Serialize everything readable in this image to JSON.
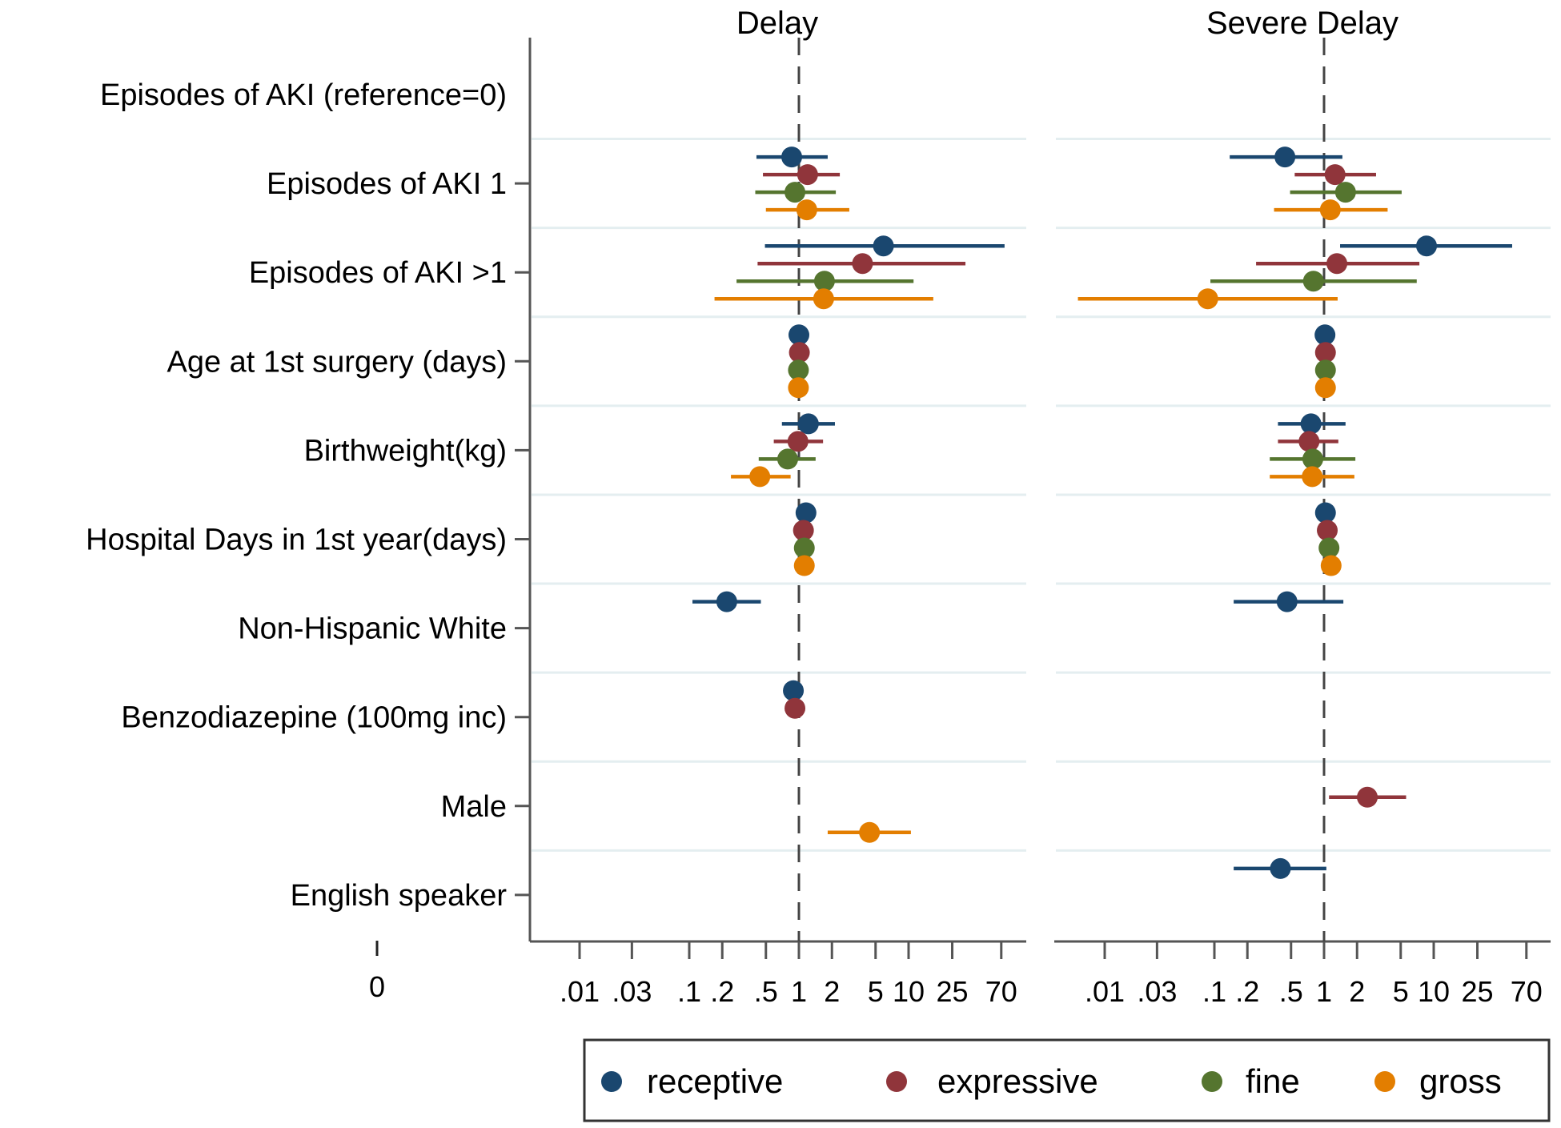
{
  "chart_data": {
    "type": "scatter",
    "subtype": "forest-plot",
    "x_scale": "log",
    "reference_value": 1,
    "x_ticks": [
      0.01,
      0.03,
      0.1,
      0.2,
      0.5,
      1,
      2,
      5,
      10,
      25,
      70
    ],
    "x_tick_labels": [
      ".01",
      ".03",
      ".1",
      ".2",
      ".5",
      "1",
      "2",
      "5",
      "10",
      "25",
      "70"
    ],
    "xlim": [
      0.0045,
      95
    ],
    "extra_axis": {
      "tick_label": "0"
    },
    "grid": "horizontal separators between rows",
    "legend_position": "bottom-right",
    "categories": [
      "Episodes of AKI (reference=0)",
      "Episodes of AKI 1",
      "Episodes of AKI >1",
      "Age at 1st surgery (days)",
      "Birthweight(kg)",
      "Hospital Days in 1st year(days)",
      "Non-Hispanic White",
      "Benzodiazepine (100mg inc)",
      "Male",
      "English speaker"
    ],
    "series": [
      {
        "name": "receptive",
        "color": "#1a476f"
      },
      {
        "name": "expressive",
        "color": "#90353b"
      },
      {
        "name": "fine",
        "color": "#55752f"
      },
      {
        "name": "gross",
        "color": "#e37e00"
      }
    ],
    "panels": [
      {
        "title": "Delay",
        "points": [
          {
            "category": 1,
            "series": "receptive",
            "est": 0.86,
            "lo": 0.41,
            "hi": 1.83
          },
          {
            "category": 1,
            "series": "expressive",
            "est": 1.2,
            "lo": 0.47,
            "hi": 2.36
          },
          {
            "category": 1,
            "series": "fine",
            "est": 0.92,
            "lo": 0.4,
            "hi": 2.17
          },
          {
            "category": 1,
            "series": "gross",
            "est": 1.18,
            "lo": 0.5,
            "hi": 2.88
          },
          {
            "category": 2,
            "series": "receptive",
            "est": 5.9,
            "lo": 0.49,
            "hi": 75
          },
          {
            "category": 2,
            "series": "expressive",
            "est": 3.8,
            "lo": 0.42,
            "hi": 33
          },
          {
            "category": 2,
            "series": "fine",
            "est": 1.71,
            "lo": 0.27,
            "hi": 11.1
          },
          {
            "category": 2,
            "series": "gross",
            "est": 1.68,
            "lo": 0.17,
            "hi": 16.8
          },
          {
            "category": 3,
            "series": "receptive",
            "est": 1.0,
            "lo": null,
            "hi": null
          },
          {
            "category": 3,
            "series": "expressive",
            "est": 1.01,
            "lo": null,
            "hi": null
          },
          {
            "category": 3,
            "series": "fine",
            "est": 0.99,
            "lo": null,
            "hi": null
          },
          {
            "category": 3,
            "series": "gross",
            "est": 0.99,
            "lo": null,
            "hi": null
          },
          {
            "category": 4,
            "series": "receptive",
            "est": 1.22,
            "lo": 0.7,
            "hi": 2.13
          },
          {
            "category": 4,
            "series": "expressive",
            "est": 0.98,
            "lo": 0.59,
            "hi": 1.66
          },
          {
            "category": 4,
            "series": "fine",
            "est": 0.79,
            "lo": 0.43,
            "hi": 1.42
          },
          {
            "category": 4,
            "series": "gross",
            "est": 0.44,
            "lo": 0.24,
            "hi": 0.84
          },
          {
            "category": 5,
            "series": "receptive",
            "est": 1.16,
            "lo": null,
            "hi": null
          },
          {
            "category": 5,
            "series": "expressive",
            "est": 1.1,
            "lo": null,
            "hi": null
          },
          {
            "category": 5,
            "series": "fine",
            "est": 1.12,
            "lo": null,
            "hi": null
          },
          {
            "category": 5,
            "series": "gross",
            "est": 1.12,
            "lo": null,
            "hi": null
          },
          {
            "category": 6,
            "series": "receptive",
            "est": 0.22,
            "lo": 0.107,
            "hi": 0.45
          },
          {
            "category": 7,
            "series": "receptive",
            "est": 0.89,
            "lo": null,
            "hi": null
          },
          {
            "category": 7,
            "series": "expressive",
            "est": 0.92,
            "lo": null,
            "hi": null
          },
          {
            "category": 8,
            "series": "gross",
            "est": 4.4,
            "lo": 1.83,
            "hi": 10.5
          }
        ]
      },
      {
        "title": "Severe Delay",
        "points": [
          {
            "category": 1,
            "series": "receptive",
            "est": 0.44,
            "lo": 0.138,
            "hi": 1.47
          },
          {
            "category": 1,
            "series": "expressive",
            "est": 1.26,
            "lo": 0.54,
            "hi": 2.98
          },
          {
            "category": 1,
            "series": "fine",
            "est": 1.57,
            "lo": 0.49,
            "hi": 5.1
          },
          {
            "category": 1,
            "series": "gross",
            "est": 1.14,
            "lo": 0.35,
            "hi": 3.8
          },
          {
            "category": 2,
            "series": "receptive",
            "est": 8.6,
            "lo": 1.4,
            "hi": 51.9
          },
          {
            "category": 2,
            "series": "expressive",
            "est": 1.31,
            "lo": 0.24,
            "hi": 7.4
          },
          {
            "category": 2,
            "series": "fine",
            "est": 0.8,
            "lo": 0.092,
            "hi": 7.0
          },
          {
            "category": 2,
            "series": "gross",
            "est": 0.087,
            "lo": 0.0057,
            "hi": 1.33
          },
          {
            "category": 3,
            "series": "receptive",
            "est": 1.02,
            "lo": null,
            "hi": null
          },
          {
            "category": 3,
            "series": "expressive",
            "est": 1.03,
            "lo": null,
            "hi": null
          },
          {
            "category": 3,
            "series": "fine",
            "est": 1.03,
            "lo": null,
            "hi": null
          },
          {
            "category": 3,
            "series": "gross",
            "est": 1.03,
            "lo": null,
            "hi": null
          },
          {
            "category": 4,
            "series": "receptive",
            "est": 0.76,
            "lo": 0.38,
            "hi": 1.57
          },
          {
            "category": 4,
            "series": "expressive",
            "est": 0.73,
            "lo": 0.38,
            "hi": 1.35
          },
          {
            "category": 4,
            "series": "fine",
            "est": 0.79,
            "lo": 0.32,
            "hi": 1.93
          },
          {
            "category": 4,
            "series": "gross",
            "est": 0.78,
            "lo": 0.32,
            "hi": 1.89
          },
          {
            "category": 5,
            "series": "receptive",
            "est": 1.03,
            "lo": null,
            "hi": null
          },
          {
            "category": 5,
            "series": "expressive",
            "est": 1.07,
            "lo": null,
            "hi": null
          },
          {
            "category": 5,
            "series": "fine",
            "est": 1.11,
            "lo": null,
            "hi": null
          },
          {
            "category": 5,
            "series": "gross",
            "est": 1.16,
            "lo": null,
            "hi": null
          },
          {
            "category": 6,
            "series": "receptive",
            "est": 0.46,
            "lo": 0.15,
            "hi": 1.5
          },
          {
            "category": 8,
            "series": "expressive",
            "est": 2.48,
            "lo": 1.11,
            "hi": 5.6
          },
          {
            "category": 9,
            "series": "receptive",
            "est": 0.4,
            "lo": 0.15,
            "hi": 1.05
          }
        ]
      }
    ]
  },
  "colors": {
    "axis": "#555555",
    "separator": "#e4eef0",
    "reference_line": "#444444"
  }
}
